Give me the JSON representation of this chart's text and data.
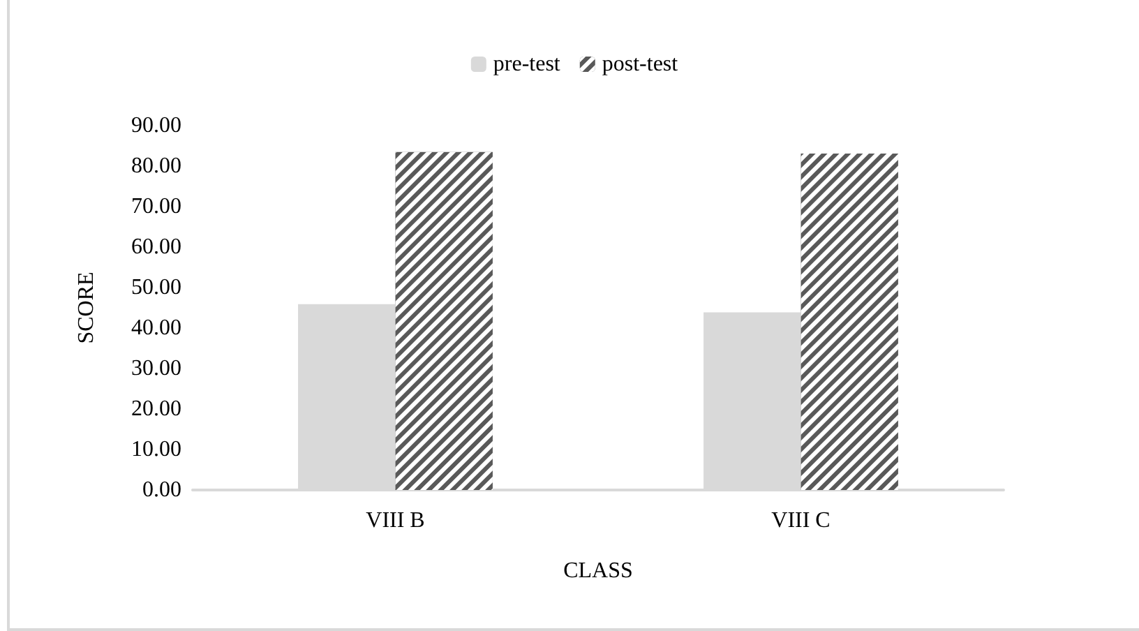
{
  "chart_data": {
    "type": "bar",
    "xlabel": "CLASS",
    "ylabel": "SCORE",
    "categories": [
      "VIII B",
      "VIII C"
    ],
    "series": [
      {
        "name": "pre-test",
        "color": "#d9d9d9",
        "values": [
          45.9,
          43.9
        ]
      },
      {
        "name": "post-test",
        "color": "#595959",
        "values": [
          83.5,
          83.1
        ]
      }
    ],
    "ylim": [
      0,
      90
    ],
    "yticks": [
      {
        "value": 0,
        "label": "0.00"
      },
      {
        "value": 10,
        "label": "10.00"
      },
      {
        "value": 20,
        "label": "20.00"
      },
      {
        "value": 30,
        "label": "30.00"
      },
      {
        "value": 40,
        "label": "40.00"
      },
      {
        "value": 50,
        "label": "50.00"
      },
      {
        "value": 60,
        "label": "60.00"
      },
      {
        "value": 70,
        "label": "70.00"
      },
      {
        "value": 80,
        "label": "80.00"
      },
      {
        "value": 90,
        "label": "90.00"
      }
    ],
    "grid": false,
    "legend": "top"
  }
}
